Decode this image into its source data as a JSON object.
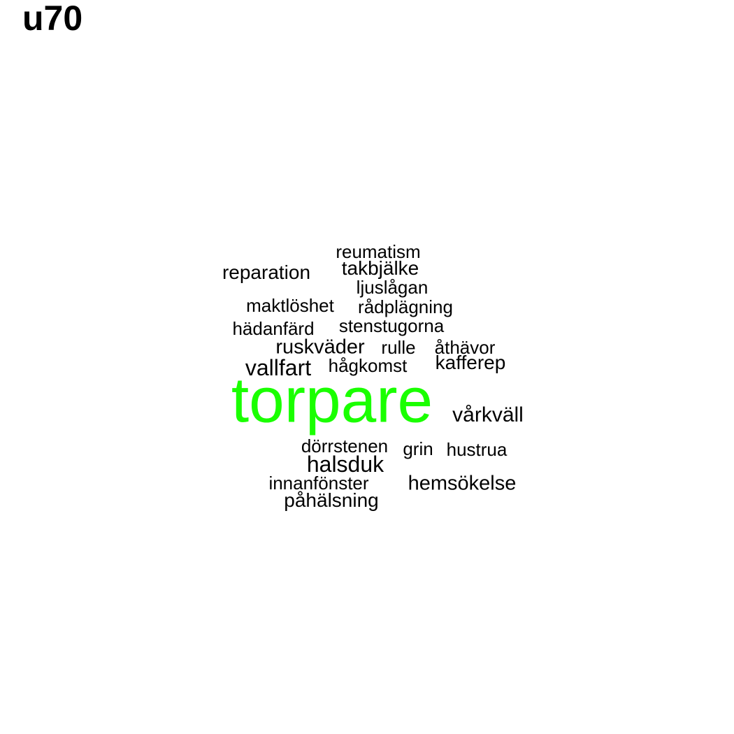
{
  "title": "u70",
  "colors": {
    "primary_word": "#1aff00",
    "other_words": "#000000",
    "background": "#ffffff"
  },
  "words": [
    {
      "id": "torpare",
      "text": "torpare"
    },
    {
      "id": "vallfart",
      "text": "vallfart"
    },
    {
      "id": "halsduk",
      "text": "halsduk"
    },
    {
      "id": "vårkväll",
      "text": "vårkväll"
    },
    {
      "id": "ruskväder",
      "text": "ruskväder"
    },
    {
      "id": "hemsökelse",
      "text": "hemsökelse"
    },
    {
      "id": "reparation",
      "text": "reparation"
    },
    {
      "id": "takbjälke",
      "text": "takbjälke"
    },
    {
      "id": "kafferep",
      "text": "kafferep"
    },
    {
      "id": "reumatism",
      "text": "reumatism"
    },
    {
      "id": "ljuslågan",
      "text": "ljuslågan"
    },
    {
      "id": "maktlöshet",
      "text": "maktlöshet"
    },
    {
      "id": "rådplägning",
      "text": "rådplägning"
    },
    {
      "id": "hädanfärd",
      "text": "hädanfärd"
    },
    {
      "id": "stenstugorna",
      "text": "stenstugorna"
    },
    {
      "id": "rulle",
      "text": "rulle"
    },
    {
      "id": "åthävor",
      "text": "åthävor"
    },
    {
      "id": "hågkomst",
      "text": "hågkomst"
    },
    {
      "id": "dörrstenen",
      "text": "dörrstenen"
    },
    {
      "id": "grin",
      "text": "grin"
    },
    {
      "id": "hustrua",
      "text": "hustrua"
    },
    {
      "id": "innanfönster",
      "text": "innanfönster"
    },
    {
      "id": "påhälsning",
      "text": "påhälsning"
    }
  ]
}
